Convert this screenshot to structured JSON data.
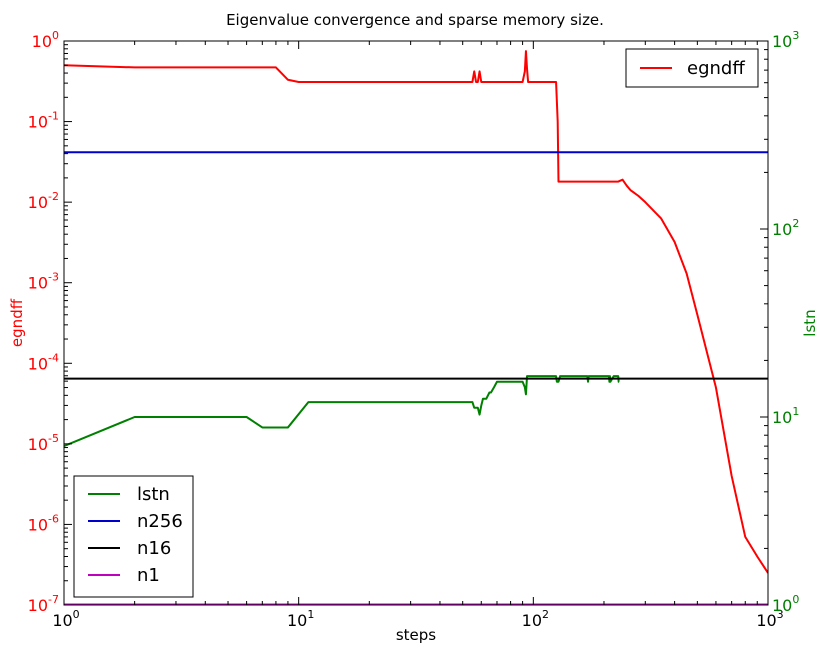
{
  "chart_data": {
    "type": "line",
    "title": "Eigenvalue convergence and sparse memory size.",
    "xlabel": "steps",
    "x_scale": "log",
    "xlim": [
      1,
      1000
    ],
    "x_ticks": [
      {
        "base": "10",
        "exp": "0",
        "value": 1
      },
      {
        "base": "10",
        "exp": "1",
        "value": 10
      },
      {
        "base": "10",
        "exp": "2",
        "value": 100
      },
      {
        "base": "10",
        "exp": "3",
        "value": 1000
      }
    ],
    "y_left": {
      "label": "egndff",
      "color": "#ff0000",
      "scale": "log",
      "ylim": [
        1e-07,
        1
      ],
      "ticks": [
        {
          "base": "10",
          "exp": "0",
          "value": 1
        },
        {
          "base": "10",
          "exp": "-1",
          "value": 0.1
        },
        {
          "base": "10",
          "exp": "-2",
          "value": 0.01
        },
        {
          "base": "10",
          "exp": "-3",
          "value": 0.001
        },
        {
          "base": "10",
          "exp": "-4",
          "value": 0.0001
        },
        {
          "base": "10",
          "exp": "-5",
          "value": 1e-05
        },
        {
          "base": "10",
          "exp": "-6",
          "value": 1e-06
        },
        {
          "base": "10",
          "exp": "-7",
          "value": 1e-07
        }
      ]
    },
    "y_right": {
      "label": "lstn",
      "color": "#008000",
      "scale": "log",
      "ylim": [
        1,
        1000
      ],
      "ticks": [
        {
          "base": "10",
          "exp": "3",
          "value": 1000
        },
        {
          "base": "10",
          "exp": "2",
          "value": 100
        },
        {
          "base": "10",
          "exp": "1",
          "value": 10
        },
        {
          "base": "10",
          "exp": "0",
          "value": 1
        }
      ]
    },
    "series": [
      {
        "name": "egndff",
        "axis": "left",
        "color": "#ff0000",
        "x": [
          1,
          2,
          3,
          4,
          5,
          6,
          7,
          8,
          9,
          10,
          20,
          40,
          55,
          56,
          57,
          58,
          59,
          60,
          61,
          62,
          70,
          80,
          90,
          92,
          93,
          94,
          95,
          96,
          100,
          110,
          125,
          127,
          128,
          130,
          150,
          200,
          230,
          240,
          250,
          260,
          280,
          300,
          350,
          400,
          450,
          500,
          600,
          700,
          800,
          900,
          1000
        ],
        "y": [
          0.5,
          0.47,
          0.47,
          0.47,
          0.47,
          0.47,
          0.47,
          0.47,
          0.33,
          0.31,
          0.31,
          0.31,
          0.31,
          0.42,
          0.31,
          0.31,
          0.42,
          0.31,
          0.31,
          0.31,
          0.31,
          0.31,
          0.31,
          0.42,
          0.75,
          0.45,
          0.31,
          0.31,
          0.31,
          0.31,
          0.31,
          0.1,
          0.018,
          0.018,
          0.018,
          0.018,
          0.018,
          0.019,
          0.016,
          0.014,
          0.012,
          0.01,
          0.0063,
          0.0032,
          0.0013,
          0.0004,
          5e-05,
          4e-06,
          7e-07,
          4e-07,
          2.5e-07
        ]
      },
      {
        "name": "lstn",
        "axis": "right",
        "color": "#008000",
        "x": [
          1,
          2,
          3,
          4,
          5,
          6,
          7,
          8,
          9,
          11,
          20,
          40,
          55,
          56,
          57,
          58,
          59,
          60,
          61,
          63,
          65,
          66,
          68,
          70,
          80,
          90,
          92,
          93,
          94,
          100,
          110,
          120,
          125,
          126,
          128,
          130,
          150,
          170,
          171,
          172,
          173,
          180,
          200,
          210,
          211,
          212,
          213,
          220,
          230,
          231,
          232
        ],
        "y": [
          7,
          10,
          10,
          10,
          10,
          10,
          8.8,
          8.8,
          8.8,
          12,
          12,
          12,
          12,
          11.2,
          11.2,
          11.2,
          10.3,
          11.5,
          12.5,
          12.5,
          13.5,
          13.5,
          14.4,
          15.4,
          15.4,
          15.4,
          14.4,
          13.2,
          16.5,
          16.5,
          16.5,
          16.5,
          16.5,
          15.4,
          15.4,
          16.5,
          16.5,
          16.5,
          15.4,
          16.5,
          16.5,
          16.5,
          16.5,
          16.5,
          15.4,
          16.5,
          15.4,
          16.5,
          16.5,
          15.4,
          15.4
        ]
      },
      {
        "name": "n256",
        "axis": "right",
        "color": "#0000cc",
        "x": [
          1,
          1000
        ],
        "y": [
          256,
          256
        ]
      },
      {
        "name": "n16",
        "axis": "right",
        "color": "#000000",
        "x": [
          1,
          1000
        ],
        "y": [
          16,
          16
        ]
      },
      {
        "name": "n1",
        "axis": "right",
        "color": "#bf00bf",
        "x": [
          1,
          1000
        ],
        "y": [
          1,
          1
        ]
      }
    ],
    "legends": [
      {
        "placement": "top-right",
        "entries": [
          "egndff"
        ]
      },
      {
        "placement": "bottom-left",
        "entries": [
          "lstn",
          "n256",
          "n16",
          "n1"
        ]
      }
    ],
    "grid": false
  }
}
